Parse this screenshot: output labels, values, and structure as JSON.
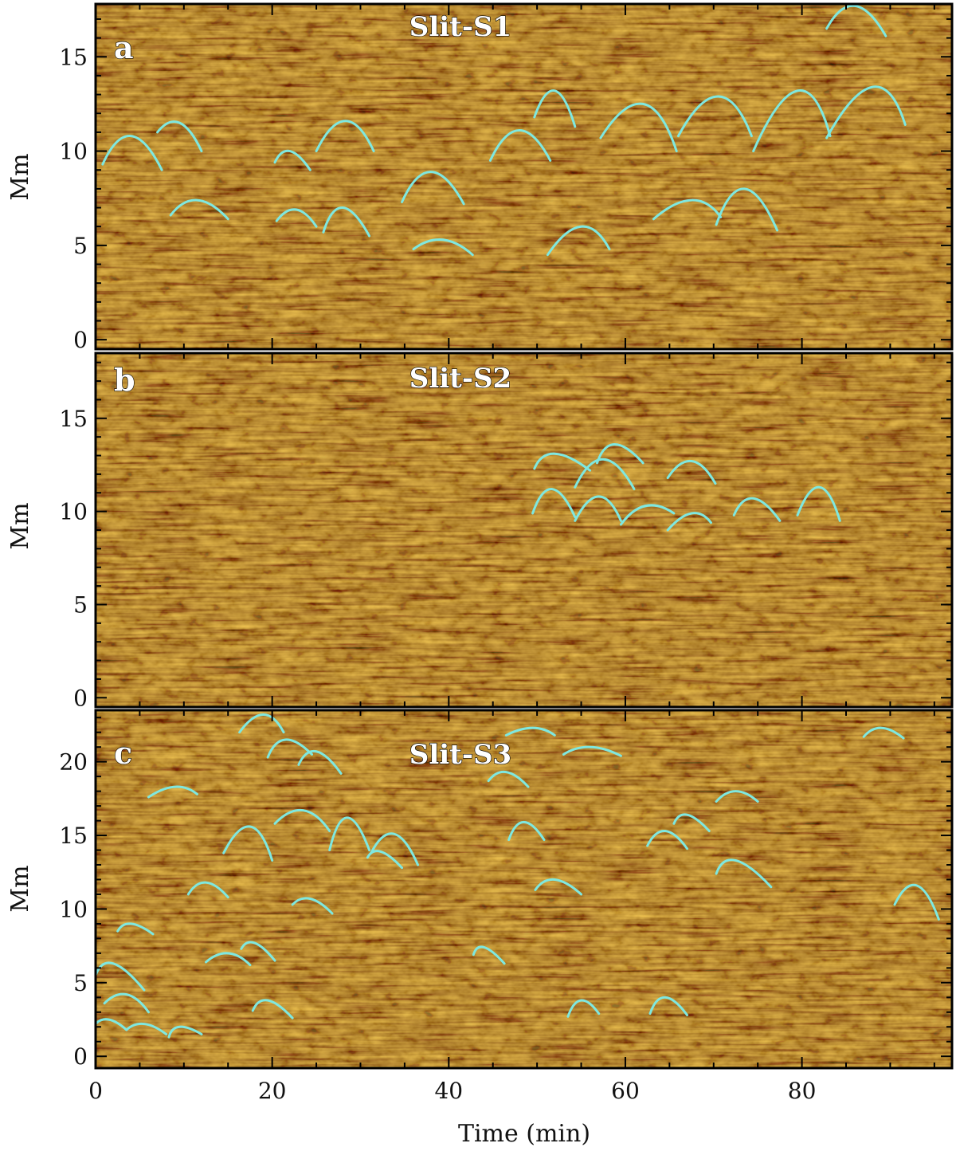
{
  "colors": {
    "background_base": "#b07d08",
    "arc": "#7fe8e0",
    "frame": "#000000"
  },
  "chart_data": [
    {
      "type": "time-distance diagram",
      "panel_label": "a",
      "title": "Slit-S1",
      "ylabel": "Mm",
      "xlabel": "",
      "xlim": [
        0,
        97
      ],
      "ylim": [
        -0.5,
        17.8
      ],
      "y_ticks": [
        0,
        5,
        10,
        15
      ],
      "x_ticks": [
        0,
        20,
        40,
        60,
        80
      ],
      "show_x_tick_labels": false,
      "arcs": [
        [
          0.8,
          9.3,
          4,
          10.8,
          7.5,
          9.0
        ],
        [
          7,
          11.0,
          9.5,
          11.5,
          12,
          10.0
        ],
        [
          8.5,
          6.6,
          11.5,
          7.4,
          15,
          6.4
        ],
        [
          20.3,
          9.4,
          22,
          10.0,
          24.3,
          9.0
        ],
        [
          20.5,
          6.3,
          22.7,
          6.9,
          25,
          6.0
        ],
        [
          25,
          10.0,
          28.3,
          11.6,
          31.5,
          10.0
        ],
        [
          25.8,
          5.7,
          28,
          7.0,
          31,
          5.5
        ],
        [
          34.7,
          7.3,
          38,
          8.9,
          41.7,
          7.2
        ],
        [
          36,
          4.8,
          39.3,
          5.3,
          42.7,
          4.5
        ],
        [
          44.7,
          9.5,
          48,
          11.1,
          51.5,
          9.5
        ],
        [
          49.7,
          11.8,
          52,
          13.2,
          54.3,
          11.3
        ],
        [
          51.2,
          4.5,
          55,
          6.0,
          58.2,
          4.8
        ],
        [
          57.2,
          10.7,
          62,
          12.5,
          65.8,
          10.0
        ],
        [
          63.2,
          6.4,
          67.5,
          7.4,
          70.8,
          6.5
        ],
        [
          66,
          10.8,
          70.5,
          12.9,
          74.3,
          10.8
        ],
        [
          70.3,
          6.1,
          73.5,
          8.0,
          77.2,
          5.8
        ],
        [
          74.5,
          10.0,
          79.5,
          13.2,
          83.2,
          10.8
        ],
        [
          82.8,
          16.5,
          86,
          17.7,
          89.5,
          16.1
        ],
        [
          82.8,
          10.7,
          88,
          13.4,
          91.7,
          11.4
        ]
      ]
    },
    {
      "type": "time-distance diagram",
      "panel_label": "b",
      "title": "Slit-S2",
      "ylabel": "Mm",
      "xlabel": "",
      "xlim": [
        0,
        97
      ],
      "ylim": [
        -0.5,
        18.5
      ],
      "y_ticks": [
        0,
        5,
        10,
        15
      ],
      "x_ticks": [
        0,
        20,
        40,
        60,
        80
      ],
      "show_x_tick_labels": false,
      "arcs": [
        [
          49.7,
          12.3,
          52,
          13.1,
          56,
          12.2
        ],
        [
          49.5,
          9.9,
          51.7,
          11.2,
          54.3,
          9.7
        ],
        [
          54.3,
          11.3,
          57.5,
          12.8,
          61,
          11.2
        ],
        [
          54.3,
          9.5,
          57,
          10.8,
          59.5,
          9.5
        ],
        [
          56.8,
          12.6,
          58.8,
          13.6,
          62,
          12.6
        ],
        [
          59.5,
          9.3,
          62.3,
          10.3,
          65.5,
          9.9
        ],
        [
          64.8,
          11.8,
          67.5,
          12.7,
          70.2,
          11.5
        ],
        [
          64.8,
          9.0,
          67.5,
          9.9,
          69.7,
          9.4
        ],
        [
          72.3,
          9.8,
          74.5,
          10.7,
          77.5,
          9.5
        ],
        [
          79.5,
          9.8,
          82,
          11.3,
          84.3,
          9.5
        ]
      ]
    },
    {
      "type": "time-distance diagram",
      "panel_label": "c",
      "title": "Slit-S3",
      "ylabel": "Mm",
      "xlabel": "Time (min)",
      "xlim": [
        0,
        97
      ],
      "ylim": [
        -0.8,
        23.5
      ],
      "y_ticks": [
        0,
        5,
        10,
        15,
        20
      ],
      "x_ticks": [
        0,
        20,
        40,
        60,
        80
      ],
      "x_tick_labels": [
        "0",
        "20",
        "40",
        "60",
        "80"
      ],
      "show_x_tick_labels": true,
      "arcs": [
        [
          16.3,
          22.0,
          19,
          23.2,
          21.3,
          22.0
        ],
        [
          19.5,
          20.3,
          21.5,
          21.5,
          24.5,
          20.5
        ],
        [
          23,
          19.8,
          25,
          20.7,
          27.8,
          19.2
        ],
        [
          6,
          17.6,
          9,
          18.3,
          11.5,
          17.8
        ],
        [
          20.3,
          15.8,
          23.5,
          16.7,
          26.5,
          15.3
        ],
        [
          14.5,
          13.8,
          17.5,
          15.6,
          20,
          13.3
        ],
        [
          26.5,
          14.0,
          28.5,
          16.2,
          31,
          14.0
        ],
        [
          30.8,
          13.5,
          32.3,
          13.9,
          34.7,
          12.8
        ],
        [
          31.2,
          13.8,
          33.8,
          15.1,
          36.5,
          13.0
        ],
        [
          10.5,
          11.0,
          12.5,
          11.8,
          15,
          10.8
        ],
        [
          22.3,
          10.3,
          24.3,
          10.7,
          26.8,
          9.7
        ],
        [
          2.5,
          8.5,
          4,
          9.0,
          6.5,
          8.3
        ],
        [
          12.5,
          6.4,
          15,
          7.0,
          17.5,
          6.2
        ],
        [
          16.5,
          7.3,
          18,
          7.7,
          20.3,
          6.5
        ],
        [
          0,
          5.5,
          2,
          6.3,
          5.5,
          4.5
        ],
        [
          1,
          3.6,
          3.5,
          4.2,
          6,
          3.0
        ],
        [
          0,
          2.2,
          1.5,
          2.5,
          3.5,
          1.8
        ],
        [
          3.5,
          1.8,
          5.5,
          2.2,
          8,
          1.5
        ],
        [
          8.3,
          1.3,
          9.5,
          2.0,
          12,
          1.5
        ],
        [
          17.8,
          3.1,
          19.5,
          3.8,
          22.3,
          2.6
        ],
        [
          42.8,
          6.9,
          44,
          7.4,
          46.3,
          6.3
        ],
        [
          44.5,
          18.7,
          46.5,
          19.3,
          49,
          18.3
        ],
        [
          46.5,
          21.8,
          49.5,
          22.3,
          52,
          21.8
        ],
        [
          53,
          20.5,
          56,
          21.0,
          59.5,
          20.4
        ],
        [
          46.8,
          14.7,
          48.5,
          15.9,
          50.8,
          14.7
        ],
        [
          49.8,
          11.3,
          52,
          12.0,
          55,
          11.0
        ],
        [
          53.5,
          2.7,
          55,
          3.8,
          57,
          2.9
        ],
        [
          62.8,
          2.9,
          64.5,
          4.0,
          67,
          2.8
        ],
        [
          62.5,
          14.3,
          64.5,
          15.3,
          67,
          14.1
        ],
        [
          65.5,
          15.8,
          67,
          16.4,
          69.5,
          15.3
        ],
        [
          70.3,
          17.3,
          72.5,
          18.0,
          75,
          17.3
        ],
        [
          70.3,
          12.4,
          72.5,
          13.3,
          76.5,
          11.5
        ],
        [
          87,
          21.7,
          89,
          22.3,
          91.5,
          21.6
        ],
        [
          90.5,
          10.3,
          93,
          11.6,
          95.5,
          9.3
        ]
      ]
    }
  ]
}
